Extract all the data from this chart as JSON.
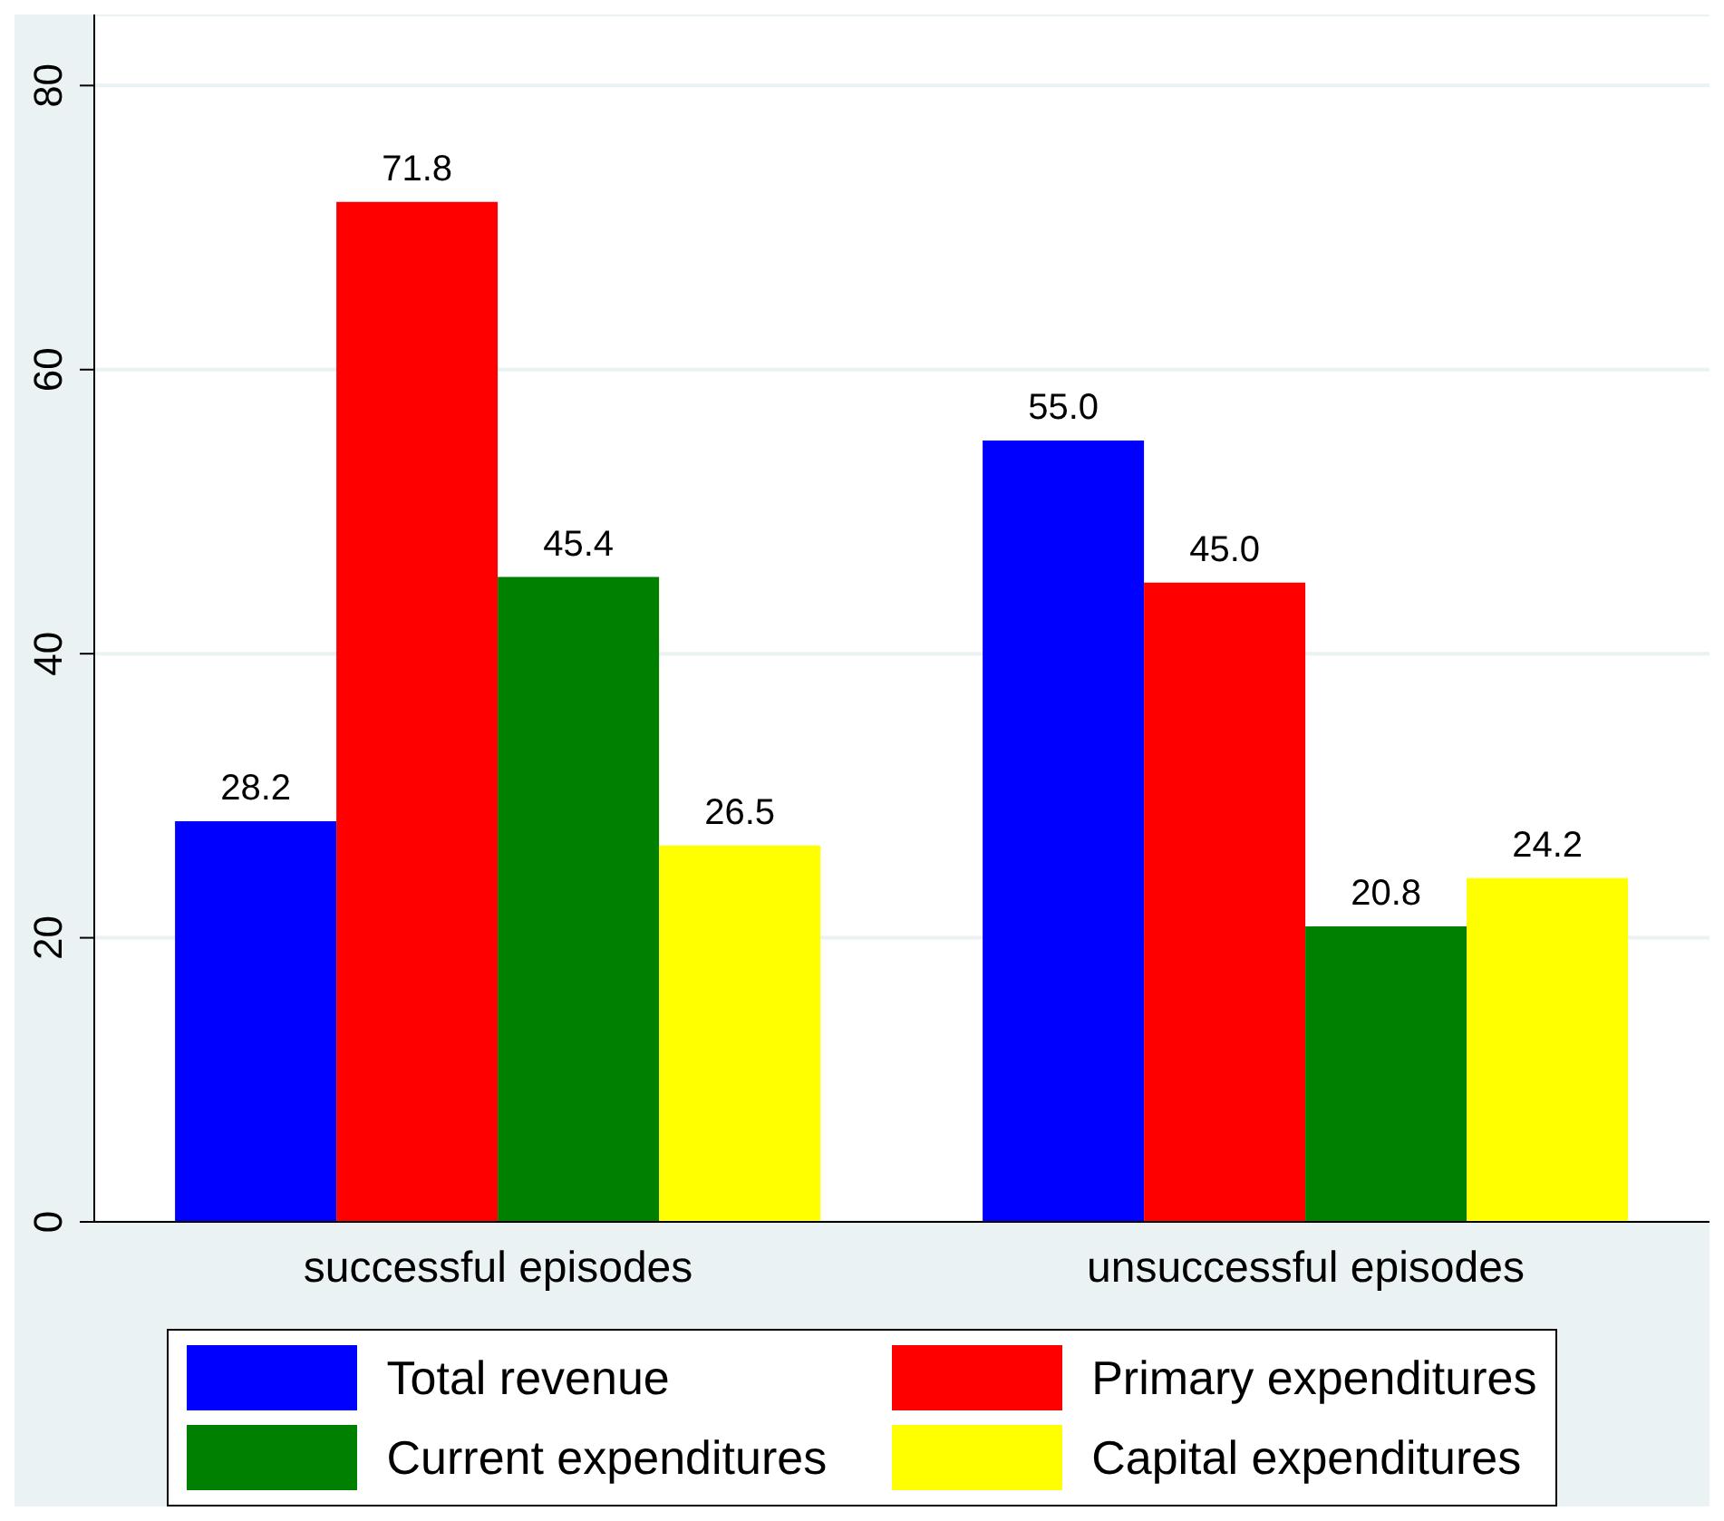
{
  "chart_data": {
    "type": "bar",
    "categories": [
      "successful episodes",
      "unsuccessful episodes"
    ],
    "series": [
      {
        "name": "Total revenue",
        "color": "#0000ff",
        "values": [
          28.2,
          55.0
        ],
        "value_labels": [
          "28.2",
          "55.0"
        ]
      },
      {
        "name": "Primary expenditures",
        "color": "#ff0000",
        "values": [
          71.8,
          45.0
        ],
        "value_labels": [
          "71.8",
          "45.0"
        ]
      },
      {
        "name": "Current expenditures",
        "color": "#008000",
        "values": [
          45.4,
          20.8
        ],
        "value_labels": [
          "45.4",
          "20.8"
        ]
      },
      {
        "name": "Capital expenditures",
        "color": "#ffff00",
        "values": [
          26.5,
          24.2
        ],
        "value_labels": [
          "26.5",
          "24.2"
        ]
      }
    ],
    "ylim": [
      0,
      85
    ],
    "yticks": [
      0,
      20,
      40,
      60,
      80
    ],
    "grid": "y",
    "legend": "bottom"
  }
}
